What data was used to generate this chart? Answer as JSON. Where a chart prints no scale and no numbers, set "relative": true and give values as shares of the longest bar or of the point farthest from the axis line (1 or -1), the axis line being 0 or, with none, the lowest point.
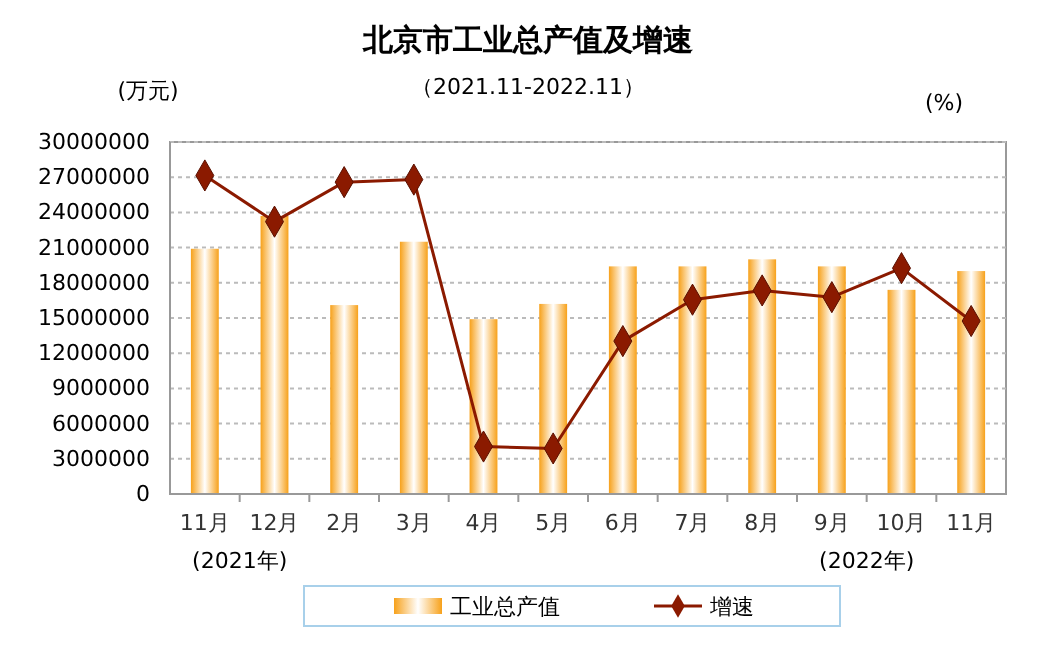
{
  "chart_data": [
    {
      "type": "bar",
      "title": "北京市工业总产值及增速",
      "subtitle": "（2021.11-2022.11）",
      "ylabel": "(万元)",
      "categories": [
        "11月",
        "12月",
        "2月",
        "3月",
        "4月",
        "5月",
        "6月",
        "7月",
        "8月",
        "9月",
        "10月",
        "11月"
      ],
      "series": [
        {
          "name": "工业总产值",
          "color": "#f7a11a",
          "values": [
            20900000,
            23700000,
            16100000,
            21500000,
            14900000,
            16200000,
            19400000,
            19400000,
            20000000,
            19400000,
            17400000,
            19000000
          ]
        }
      ],
      "ylim": [
        0,
        30000000
      ],
      "yticks": [
        0,
        3000000,
        6000000,
        9000000,
        12000000,
        15000000,
        18000000,
        21000000,
        24000000,
        27000000,
        30000000
      ],
      "grid": "y",
      "legend": "bottom",
      "annotations": [
        "(2021年)",
        "(2022年)"
      ]
    },
    {
      "type": "line",
      "relative": true,
      "ylabel": "(%)",
      "tick_labels": false,
      "legend": "bottom",
      "marker": "diamond",
      "categories": [
        null,
        null,
        null,
        null,
        null,
        null,
        null,
        null,
        null,
        null,
        null,
        null
      ],
      "series": [
        {
          "name": "增速",
          "color": "#8b1a00",
          "values": [
            1,
            0.855,
            0.979,
            0.987,
            0.149,
            0.143,
            0.48,
            0.61,
            0.639,
            0.618,
            0.709,
            0.543
          ]
        }
      ]
    }
  ]
}
